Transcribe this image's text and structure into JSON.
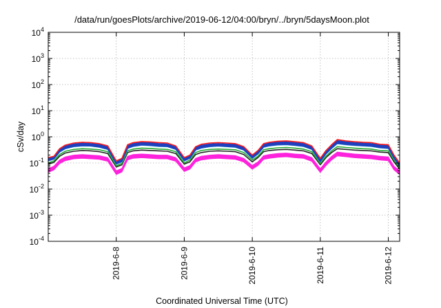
{
  "chart_data": {
    "type": "area",
    "title": "/data/run/goesPlots/archive/2019-06-12/04:00/bryn/../bryn/5daysMoon.plot",
    "xlabel": "Coordinated Universal Time (UTC)",
    "ylabel": "cSv/day",
    "yscale": "log",
    "ylim": [
      0.0001,
      10000
    ],
    "xlim": [
      "2019-06-07 00:00",
      "2019-06-12 04:00"
    ],
    "grid": true,
    "yticks": [
      {
        "base": "10",
        "exp": "-4"
      },
      {
        "base": "10",
        "exp": "-3"
      },
      {
        "base": "10",
        "exp": "-2"
      },
      {
        "base": "10",
        "exp": "-1"
      },
      {
        "base": "10",
        "exp": "0"
      },
      {
        "base": "10",
        "exp": "1"
      },
      {
        "base": "10",
        "exp": "2"
      },
      {
        "base": "10",
        "exp": "3"
      },
      {
        "base": "10",
        "exp": "4"
      }
    ],
    "xticks": [
      "2019-6-8",
      "2019-6-9",
      "2019-6-10",
      "2019-6-11",
      "2019-6-12"
    ],
    "x": [
      "2019-06-07 00:00",
      "2019-06-07 02:00",
      "2019-06-07 04:00",
      "2019-06-07 06:00",
      "2019-06-07 09:00",
      "2019-06-07 12:00",
      "2019-06-07 15:00",
      "2019-06-07 18:00",
      "2019-06-07 21:00",
      "2019-06-08 00:00",
      "2019-06-08 02:00",
      "2019-06-08 04:00",
      "2019-06-08 06:00",
      "2019-06-08 09:00",
      "2019-06-08 12:00",
      "2019-06-08 15:00",
      "2019-06-08 18:00",
      "2019-06-08 21:00",
      "2019-06-09 00:00",
      "2019-06-09 02:00",
      "2019-06-09 04:00",
      "2019-06-09 06:00",
      "2019-06-09 09:00",
      "2019-06-09 12:00",
      "2019-06-09 15:00",
      "2019-06-09 18:00",
      "2019-06-09 21:00",
      "2019-06-10 00:00",
      "2019-06-10 02:00",
      "2019-06-10 04:00",
      "2019-06-10 06:00",
      "2019-06-10 09:00",
      "2019-06-10 12:00",
      "2019-06-10 15:00",
      "2019-06-10 18:00",
      "2019-06-10 21:00",
      "2019-06-11 00:00",
      "2019-06-11 02:00",
      "2019-06-11 04:00",
      "2019-06-11 06:00",
      "2019-06-11 09:00",
      "2019-06-11 12:00",
      "2019-06-11 15:00",
      "2019-06-11 18:00",
      "2019-06-11 21:00",
      "2019-06-12 00:00",
      "2019-06-12 02:00",
      "2019-06-12 04:00"
    ],
    "series": [
      {
        "color": "#ff1a1a",
        "values": [
          0.16,
          0.18,
          0.35,
          0.48,
          0.58,
          0.62,
          0.6,
          0.55,
          0.45,
          0.12,
          0.15,
          0.5,
          0.6,
          0.66,
          0.64,
          0.6,
          0.58,
          0.45,
          0.16,
          0.2,
          0.42,
          0.52,
          0.58,
          0.6,
          0.58,
          0.55,
          0.42,
          0.2,
          0.3,
          0.55,
          0.62,
          0.68,
          0.7,
          0.65,
          0.6,
          0.45,
          0.15,
          0.3,
          0.5,
          0.78,
          0.7,
          0.65,
          0.62,
          0.6,
          0.52,
          0.5,
          0.2,
          0.1
        ]
      },
      {
        "color": "#1f3fbf",
        "values": [
          0.15,
          0.17,
          0.32,
          0.45,
          0.54,
          0.58,
          0.56,
          0.52,
          0.42,
          0.11,
          0.14,
          0.46,
          0.56,
          0.62,
          0.6,
          0.56,
          0.54,
          0.42,
          0.15,
          0.19,
          0.4,
          0.48,
          0.54,
          0.56,
          0.54,
          0.52,
          0.4,
          0.19,
          0.28,
          0.52,
          0.58,
          0.64,
          0.66,
          0.61,
          0.56,
          0.42,
          0.14,
          0.28,
          0.47,
          0.72,
          0.66,
          0.61,
          0.58,
          0.56,
          0.5,
          0.48,
          0.19,
          0.09
        ]
      },
      {
        "color": "#29c7e0",
        "values": [
          0.12,
          0.14,
          0.26,
          0.35,
          0.42,
          0.45,
          0.44,
          0.4,
          0.33,
          0.09,
          0.11,
          0.36,
          0.43,
          0.48,
          0.46,
          0.43,
          0.42,
          0.33,
          0.12,
          0.15,
          0.31,
          0.37,
          0.42,
          0.44,
          0.42,
          0.4,
          0.31,
          0.15,
          0.22,
          0.4,
          0.45,
          0.49,
          0.5,
          0.47,
          0.43,
          0.33,
          0.11,
          0.22,
          0.36,
          0.55,
          0.5,
          0.47,
          0.45,
          0.43,
          0.38,
          0.36,
          0.15,
          0.075
        ]
      },
      {
        "color": "#22aa33",
        "values": [
          0.1,
          0.12,
          0.21,
          0.28,
          0.33,
          0.35,
          0.34,
          0.32,
          0.27,
          0.078,
          0.095,
          0.29,
          0.34,
          0.37,
          0.36,
          0.34,
          0.33,
          0.27,
          0.1,
          0.13,
          0.25,
          0.3,
          0.33,
          0.34,
          0.33,
          0.32,
          0.25,
          0.13,
          0.18,
          0.32,
          0.35,
          0.38,
          0.39,
          0.37,
          0.34,
          0.27,
          0.095,
          0.18,
          0.29,
          0.42,
          0.39,
          0.37,
          0.35,
          0.34,
          0.3,
          0.29,
          0.13,
          0.065
        ]
      },
      {
        "color": "#222222",
        "values": [
          0.09,
          0.105,
          0.18,
          0.24,
          0.28,
          0.3,
          0.29,
          0.27,
          0.23,
          0.07,
          0.085,
          0.25,
          0.29,
          0.31,
          0.3,
          0.29,
          0.28,
          0.23,
          0.09,
          0.11,
          0.21,
          0.25,
          0.28,
          0.29,
          0.28,
          0.27,
          0.21,
          0.11,
          0.16,
          0.27,
          0.3,
          0.32,
          0.33,
          0.31,
          0.29,
          0.23,
          0.085,
          0.16,
          0.25,
          0.35,
          0.33,
          0.31,
          0.3,
          0.29,
          0.26,
          0.25,
          0.11,
          0.058
        ]
      },
      {
        "color": "#ff22dd",
        "values": [
          0.06,
          0.075,
          0.13,
          0.17,
          0.2,
          0.21,
          0.2,
          0.19,
          0.16,
          0.05,
          0.062,
          0.18,
          0.21,
          0.22,
          0.21,
          0.2,
          0.2,
          0.16,
          0.065,
          0.08,
          0.15,
          0.18,
          0.2,
          0.21,
          0.2,
          0.19,
          0.15,
          0.08,
          0.11,
          0.19,
          0.21,
          0.23,
          0.24,
          0.22,
          0.21,
          0.16,
          0.06,
          0.11,
          0.18,
          0.26,
          0.24,
          0.22,
          0.21,
          0.2,
          0.18,
          0.17,
          0.075,
          0.05
        ]
      }
    ]
  }
}
